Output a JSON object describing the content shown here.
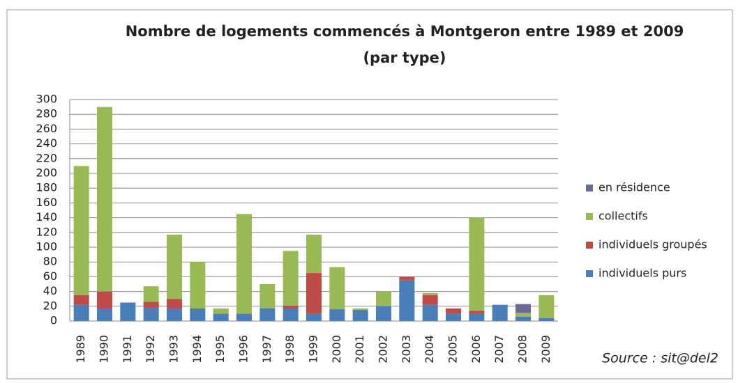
{
  "chart_data": {
    "type": "stacked_bar",
    "title": "Nombre de logements commencés à Montgeron entre 1989 et 2009",
    "subtitle": "(par type)",
    "source": "Source : sit@del2",
    "categories": [
      "1989",
      "1990",
      "1991",
      "1992",
      "1993",
      "1994",
      "1995",
      "1996",
      "1997",
      "1998",
      "1999",
      "2000",
      "2001",
      "2002",
      "2003",
      "2004",
      "2005",
      "2006",
      "2007",
      "2008",
      "2009"
    ],
    "series": [
      {
        "name": "individuels purs",
        "color": "#4a7ebb",
        "values": [
          22,
          17,
          25,
          18,
          17,
          17,
          10,
          10,
          17,
          17,
          10,
          16,
          15,
          20,
          55,
          22,
          10,
          10,
          22,
          6,
          4
        ]
      },
      {
        "name": "individuels groupés",
        "color": "#be4b48",
        "values": [
          13,
          23,
          0,
          8,
          13,
          0,
          0,
          0,
          0,
          4,
          55,
          0,
          0,
          0,
          5,
          13,
          7,
          4,
          0,
          0,
          0
        ]
      },
      {
        "name": "collectifs",
        "color": "#98b954",
        "values": [
          175,
          250,
          0,
          21,
          87,
          63,
          7,
          135,
          33,
          74,
          52,
          57,
          2,
          20,
          0,
          3,
          0,
          126,
          0,
          5,
          31
        ]
      },
      {
        "name": "en résidence",
        "color": "#6a6a94",
        "values": [
          0,
          0,
          0,
          0,
          0,
          0,
          0,
          0,
          0,
          0,
          0,
          0,
          0,
          0,
          0,
          0,
          0,
          0,
          0,
          12,
          0
        ]
      }
    ],
    "ylim": [
      0,
      300
    ],
    "yticks": [
      0,
      20,
      40,
      60,
      80,
      100,
      120,
      140,
      160,
      180,
      200,
      220,
      240,
      260,
      280,
      300
    ],
    "grid": true,
    "legend": "right"
  }
}
